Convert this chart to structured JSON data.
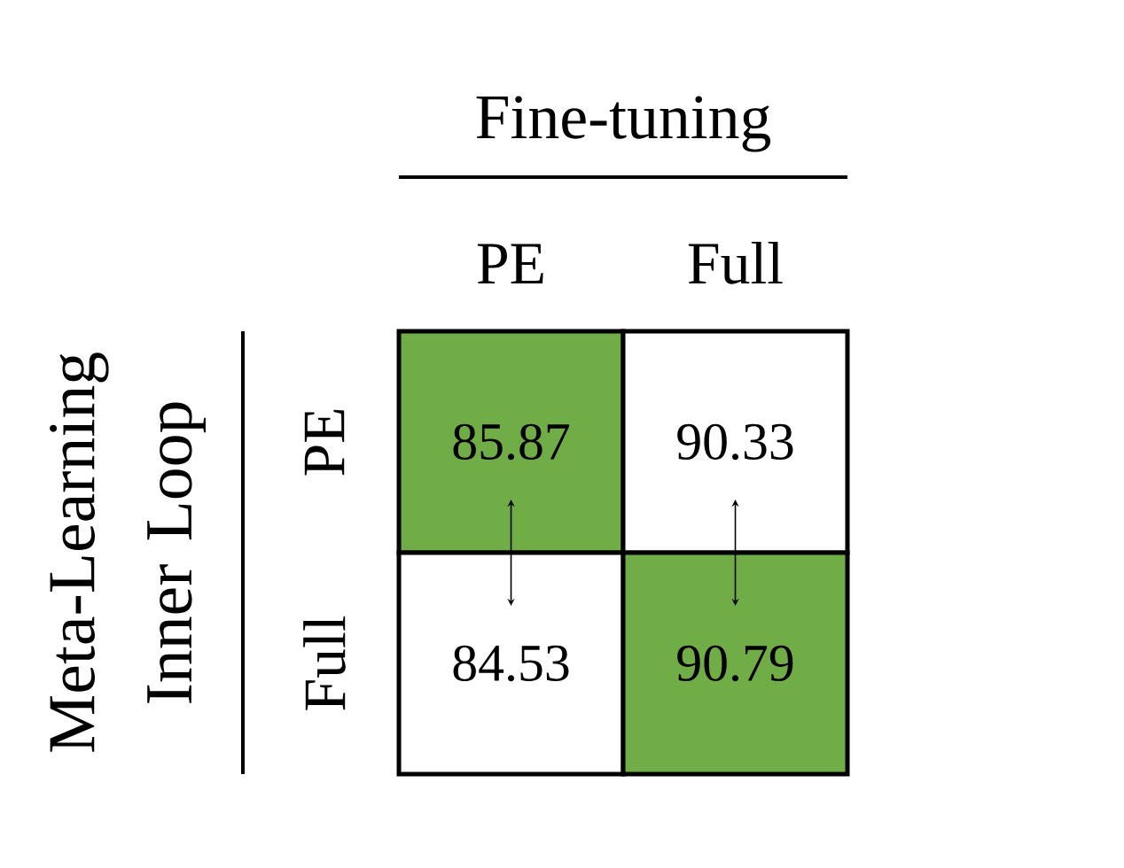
{
  "chart_data": {
    "type": "heatmap",
    "xlabel": "Fine-tuning",
    "ylabel": "Meta-Learning Inner Loop",
    "categories": [
      "PE",
      "Full"
    ],
    "y_categories": [
      "PE",
      "Full"
    ],
    "cells": [
      [
        85.87,
        90.33
      ],
      [
        84.53,
        90.79
      ]
    ],
    "colors": [
      [
        "#70ad47",
        "#ffffff"
      ],
      [
        "#ffffff",
        "#70ad47"
      ]
    ],
    "data_labels": true
  }
}
